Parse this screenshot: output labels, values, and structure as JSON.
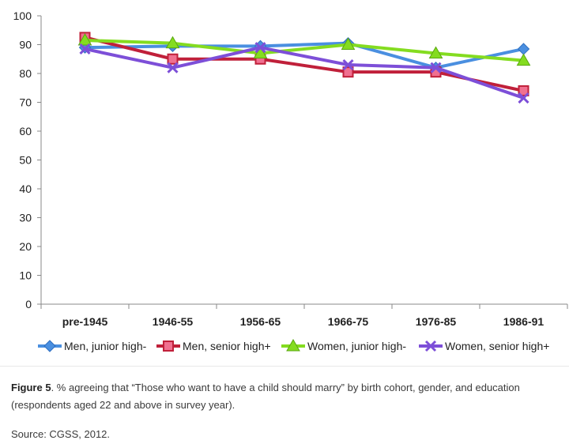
{
  "chart_data": {
    "type": "line",
    "categories": [
      "pre-1945",
      "1946-55",
      "1956-65",
      "1966-75",
      "1976-85",
      "1986-91"
    ],
    "ylim": [
      0,
      100
    ],
    "yticks": [
      0,
      10,
      20,
      30,
      40,
      50,
      60,
      70,
      80,
      90,
      100
    ],
    "grid": false,
    "legend_position": "bottom",
    "series": [
      {
        "name": "Men, junior high-",
        "color": "#4a8fe0",
        "marker": "diamond",
        "values": [
          89,
          89.5,
          89.5,
          90.5,
          82,
          88.5
        ]
      },
      {
        "name": "Men, senior high+",
        "color": "#c0203a",
        "marker": "square",
        "values": [
          92.5,
          85,
          85,
          80.5,
          80.5,
          74
        ]
      },
      {
        "name": "Women, junior high-",
        "color": "#84dc20",
        "marker": "triangle",
        "values": [
          91.5,
          90.5,
          87,
          90,
          87,
          84.5
        ]
      },
      {
        "name": "Women, senior high+",
        "color": "#7d4fd8",
        "marker": "x",
        "values": [
          88.5,
          82,
          89,
          83,
          82,
          71.5
        ]
      }
    ]
  },
  "caption": {
    "label": "Figure 5",
    "text": ". % agreeing that “Those who want to have a child should marry” by birth cohort, gender, and education (respondents aged 22 and above in survey year)."
  },
  "source": "Source: CGSS, 2012."
}
